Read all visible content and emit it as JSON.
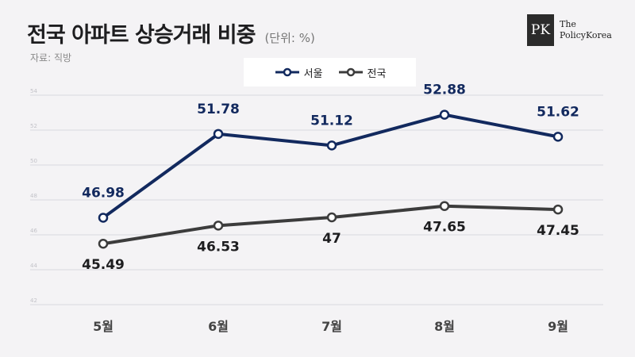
{
  "header": {
    "title": "전국 아파트 상승거래 비중",
    "unit": "(단위: %)",
    "source": "자료: 직방"
  },
  "logo": {
    "mark": "PK",
    "line1": "The",
    "line2": "PolicyKorea"
  },
  "colors": {
    "seoul": "#12295e",
    "national": "#3c3c3c",
    "grid": "#d9d9de",
    "tick": "#c2c2c8"
  },
  "chart_data": {
    "type": "line",
    "categories": [
      "5월",
      "6월",
      "7월",
      "8월",
      "9월"
    ],
    "series": [
      {
        "name": "서울",
        "values": [
          46.98,
          51.78,
          51.12,
          52.88,
          51.62
        ],
        "labels": [
          "46.98",
          "51.78",
          "51.12",
          "52.88",
          "51.62"
        ]
      },
      {
        "name": "전국",
        "values": [
          45.49,
          46.53,
          47,
          47.65,
          47.45
        ],
        "labels": [
          "45.49",
          "46.53",
          "47",
          "47.65",
          "47.45"
        ]
      }
    ],
    "yticks": [
      "54",
      "52",
      "50",
      "48",
      "46",
      "44",
      "42"
    ],
    "ylim": [
      42,
      54
    ],
    "grid": true,
    "legend": "top-center"
  }
}
